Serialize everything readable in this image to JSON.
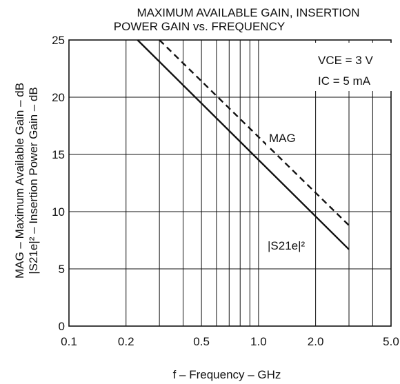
{
  "chart_data": {
    "type": "line",
    "title_lines": [
      "MAXIMUM AVAILABLE GAIN, INSERTION",
      "POWER GAIN vs. FREQUENCY"
    ],
    "xlabel": "f – Frequency – GHz",
    "ylabel_lines": [
      "MAG – Maximum Available Gain – dB",
      "|S21e|² – Insertion Power Gain – dB"
    ],
    "x_scale": "log",
    "xlim": [
      0.1,
      5.0
    ],
    "ylim": [
      0,
      25
    ],
    "x_ticks": [
      {
        "value": 0.1,
        "label": "0.1"
      },
      {
        "value": 0.2,
        "label": "0.2"
      },
      {
        "value": 0.5,
        "label": "0.5"
      },
      {
        "value": 1.0,
        "label": "1.0"
      },
      {
        "value": 2.0,
        "label": "2.0"
      },
      {
        "value": 5.0,
        "label": "5.0"
      }
    ],
    "y_ticks": [
      {
        "value": 0,
        "label": "0"
      },
      {
        "value": 5,
        "label": "5"
      },
      {
        "value": 10,
        "label": "10"
      },
      {
        "value": 15,
        "label": "15"
      },
      {
        "value": 20,
        "label": "20"
      },
      {
        "value": 25,
        "label": "25"
      }
    ],
    "grid": true,
    "conditions": [
      "VCE = 3 V",
      "IC = 5 mA"
    ],
    "series": [
      {
        "name": "MAG",
        "style": "dashed",
        "x": [
          0.3,
          3.0
        ],
        "y": [
          25,
          8.8
        ]
      },
      {
        "name": "|S21e|²",
        "style": "solid",
        "x": [
          0.23,
          3.0
        ],
        "y": [
          25,
          6.7
        ]
      }
    ]
  }
}
